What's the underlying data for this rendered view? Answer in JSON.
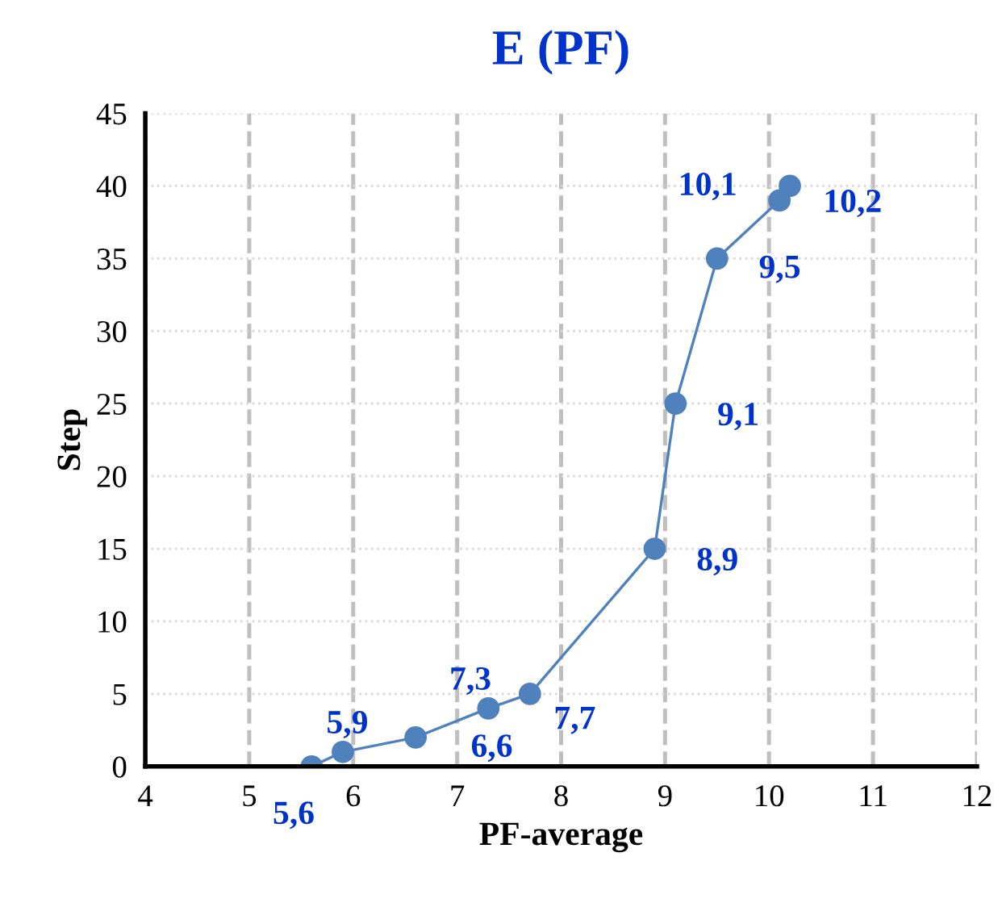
{
  "chart_data": {
    "type": "line",
    "title": "E (PF)",
    "xlabel": "PF-average",
    "ylabel": "Step",
    "x": [
      5.6,
      5.9,
      6.6,
      7.3,
      7.7,
      8.9,
      9.1,
      9.5,
      10.1,
      10.2
    ],
    "series": [
      {
        "color": "#4f81bd",
        "values": [
          0,
          1,
          2,
          4,
          5,
          15,
          25,
          35,
          39,
          40
        ]
      }
    ],
    "annotations": [
      {
        "text": "5,6",
        "x": 5.6,
        "y": 0
      },
      {
        "text": "5,9",
        "x": 5.9,
        "y": 1
      },
      {
        "text": "6,6",
        "x": 6.6,
        "y": 2
      },
      {
        "text": "7,3",
        "x": 7.3,
        "y": 4
      },
      {
        "text": "7,7",
        "x": 7.7,
        "y": 5
      },
      {
        "text": "8,9",
        "x": 8.9,
        "y": 15
      },
      {
        "text": "9,1",
        "x": 9.1,
        "y": 25
      },
      {
        "text": "9,5",
        "x": 9.5,
        "y": 35
      },
      {
        "text": "10,1",
        "x": 10.1,
        "y": 39
      },
      {
        "text": "10,2",
        "x": 10.2,
        "y": 40
      }
    ],
    "xlim": [
      4,
      12
    ],
    "xticks": [
      4,
      5,
      6,
      7,
      8,
      9,
      10,
      11,
      12
    ],
    "ylim": [
      0,
      45
    ],
    "yticks": [
      0,
      5,
      10,
      15,
      20,
      25,
      30,
      35,
      40,
      45
    ],
    "grid": true,
    "marker": "circle",
    "line_style": "solid"
  }
}
